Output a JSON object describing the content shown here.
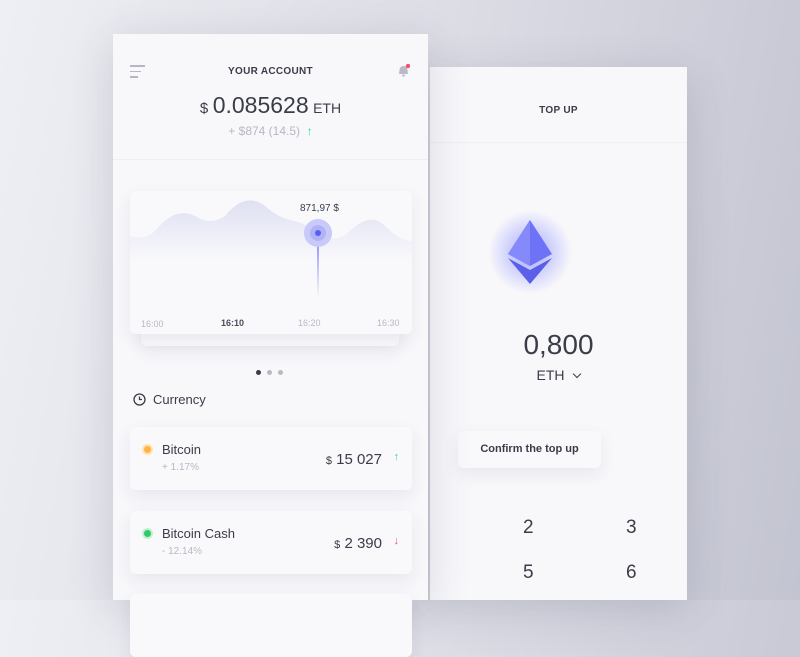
{
  "account": {
    "title": "YOUR ACCOUNT",
    "currency_symbol": "$",
    "balance": "0.085628",
    "unit": "ETH",
    "change": "+ $874 (14.5)",
    "change_arrow": "↑"
  },
  "chart": {
    "tooltip": "871,97 $",
    "ticks": [
      "16:00",
      "16:10",
      "16:20",
      "16:30"
    ],
    "active_tick": "16:10",
    "page_dots": 3,
    "active_dot": 0
  },
  "currency": {
    "heading": "Currency",
    "items": [
      {
        "name": "Bitcoin",
        "change": "+ 1.17%",
        "symbol": "$",
        "price": "15 027",
        "arrow": "↑",
        "dot_color": "#ffb443",
        "trend": "up"
      },
      {
        "name": "Bitcoin Cash",
        "change": "- 12.14%",
        "symbol": "$",
        "price": "2 390",
        "arrow": "↓",
        "dot_color": "#2ecb6a",
        "trend": "down"
      }
    ]
  },
  "topup": {
    "title": "TOP UP",
    "amount": "0,800",
    "unit": "ETH",
    "confirm_label": "Confirm the top up",
    "keys": [
      "2",
      "3",
      "5",
      "6"
    ]
  },
  "colors": {
    "accent": "#5b5ff0",
    "up": "#2ed79a",
    "down": "#f4506b"
  }
}
